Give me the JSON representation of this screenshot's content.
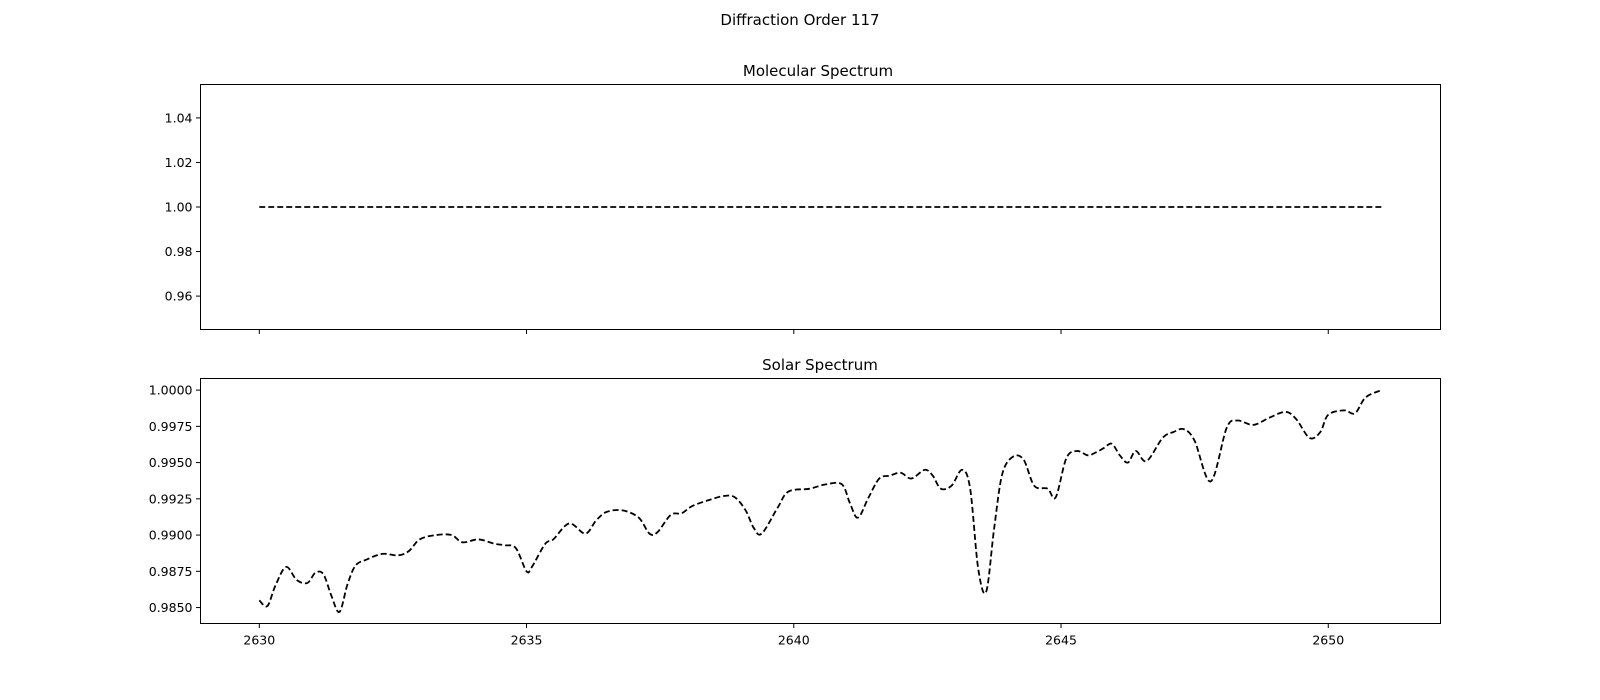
{
  "figure": {
    "title": "Diffraction Order 117"
  },
  "chart_data": [
    {
      "type": "line",
      "title": "Molecular Spectrum",
      "xlabel": "",
      "ylabel": "",
      "xlim": [
        2628.9,
        2652.1
      ],
      "ylim": [
        0.945,
        1.055
      ],
      "x_ticks": [
        2630,
        2635,
        2640,
        2645,
        2650
      ],
      "x_tick_labels_visible": false,
      "y_ticks": [
        0.96,
        0.98,
        1.0,
        1.02,
        1.04
      ],
      "y_tick_labels": [
        "0.96",
        "0.98",
        "1.00",
        "1.02",
        "1.04"
      ],
      "grid": false,
      "legend": false,
      "line_color": "#000000",
      "line_style": "dashed",
      "series": [
        {
          "x": [
            2630.0,
            2651.0
          ],
          "y": [
            1.0,
            1.0
          ]
        }
      ]
    },
    {
      "type": "line",
      "title": "Solar Spectrum",
      "xlabel": "",
      "ylabel": "",
      "xlim": [
        2628.9,
        2652.1
      ],
      "ylim": [
        0.9839,
        1.0008
      ],
      "x_ticks": [
        2630,
        2635,
        2640,
        2645,
        2650
      ],
      "x_tick_labels": [
        "2630",
        "2635",
        "2640",
        "2645",
        "2650"
      ],
      "y_ticks": [
        0.985,
        0.9875,
        0.99,
        0.9925,
        0.995,
        0.9975,
        1.0
      ],
      "y_tick_labels": [
        "0.9850",
        "0.9875",
        "0.9900",
        "0.9925",
        "0.9950",
        "0.9975",
        "1.0000"
      ],
      "grid": false,
      "legend": false,
      "line_color": "#000000",
      "line_style": "dashed",
      "series": [
        {
          "x": [
            2630.0,
            2630.15,
            2630.3,
            2630.5,
            2630.7,
            2630.9,
            2631.05,
            2631.2,
            2631.35,
            2631.5,
            2631.65,
            2631.8,
            2632.0,
            2632.3,
            2632.6,
            2632.8,
            2633.0,
            2633.3,
            2633.6,
            2633.8,
            2634.1,
            2634.4,
            2634.6,
            2634.8,
            2635.0,
            2635.1,
            2635.35,
            2635.5,
            2635.8,
            2636.1,
            2636.3,
            2636.5,
            2636.8,
            2637.1,
            2637.3,
            2637.45,
            2637.7,
            2637.9,
            2638.1,
            2638.4,
            2638.7,
            2638.9,
            2639.1,
            2639.25,
            2639.4,
            2639.7,
            2639.9,
            2640.3,
            2640.6,
            2640.9,
            2641.05,
            2641.2,
            2641.4,
            2641.6,
            2641.8,
            2642.0,
            2642.2,
            2642.45,
            2642.6,
            2642.75,
            2642.95,
            2643.15,
            2643.3,
            2643.45,
            2643.6,
            2643.75,
            2643.9,
            2644.1,
            2644.3,
            2644.5,
            2644.75,
            2644.9,
            2645.1,
            2645.3,
            2645.5,
            2645.65,
            2645.8,
            2645.95,
            2646.1,
            2646.25,
            2646.4,
            2646.6,
            2646.9,
            2647.1,
            2647.3,
            2647.5,
            2647.8,
            2648.1,
            2648.3,
            2648.6,
            2648.9,
            2649.2,
            2649.4,
            2649.65,
            2649.85,
            2650.0,
            2650.3,
            2650.5,
            2650.7,
            2651.0
          ],
          "y": [
            0.9855,
            0.9851,
            0.9865,
            0.9878,
            0.9869,
            0.9867,
            0.9874,
            0.9873,
            0.9858,
            0.9847,
            0.9866,
            0.9879,
            0.9883,
            0.9887,
            0.9886,
            0.9889,
            0.9897,
            0.99,
            0.99,
            0.9895,
            0.9897,
            0.9894,
            0.9893,
            0.9891,
            0.9875,
            0.9878,
            0.9894,
            0.9897,
            0.9908,
            0.9901,
            0.991,
            0.9916,
            0.9917,
            0.9912,
            0.9901,
            0.9902,
            0.9914,
            0.9915,
            0.992,
            0.9924,
            0.9927,
            0.9926,
            0.9917,
            0.9905,
            0.9901,
            0.9919,
            0.993,
            0.9932,
            0.9935,
            0.9935,
            0.9922,
            0.9912,
            0.9926,
            0.9939,
            0.9941,
            0.9943,
            0.9939,
            0.9945,
            0.9941,
            0.9932,
            0.9934,
            0.9945,
            0.9932,
            0.9877,
            0.9861,
            0.9905,
            0.9942,
            0.9954,
            0.9952,
            0.9934,
            0.9932,
            0.9926,
            0.9953,
            0.9958,
            0.9955,
            0.9957,
            0.996,
            0.9963,
            0.9955,
            0.995,
            0.9958,
            0.9951,
            0.9967,
            0.9971,
            0.9973,
            0.9965,
            0.9937,
            0.9974,
            0.9979,
            0.9976,
            0.9981,
            0.9985,
            0.998,
            0.9967,
            0.9971,
            0.9983,
            0.9986,
            0.9984,
            0.9995,
            1.0
          ]
        }
      ]
    }
  ]
}
